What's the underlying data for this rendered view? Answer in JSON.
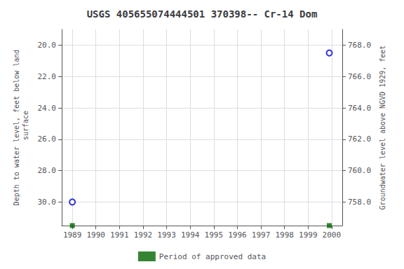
{
  "chart_data": {
    "type": "scatter",
    "title": "USGS 405655074444501 370398-- Cr-14 Dom",
    "ylabel": "Depth to water level, feet below land\n surface",
    "y2label": "Groundwater level above NGVD 1929, feet",
    "xlim": [
      1988.55,
      2000.45
    ],
    "xticks": [
      1989,
      1990,
      1991,
      1992,
      1993,
      1994,
      1995,
      1996,
      1997,
      1998,
      1999,
      2000
    ],
    "ylim": [
      31.5,
      19.0
    ],
    "yticks": [
      {
        "value": 20.0,
        "label": "20.0"
      },
      {
        "value": 22.0,
        "label": "22.0"
      },
      {
        "value": 24.0,
        "label": "24.0"
      },
      {
        "value": 26.0,
        "label": "26.0"
      },
      {
        "value": 28.0,
        "label": "28.0"
      },
      {
        "value": 30.0,
        "label": "30.0"
      }
    ],
    "y2lim": [
      756.5,
      769.0
    ],
    "y2ticks": [
      {
        "value": 758.0,
        "label": "758.0"
      },
      {
        "value": 760.0,
        "label": "760.0"
      },
      {
        "value": 762.0,
        "label": "762.0"
      },
      {
        "value": 764.0,
        "label": "764.0"
      },
      {
        "value": 766.0,
        "label": "766.0"
      },
      {
        "value": 768.0,
        "label": "768.0"
      }
    ],
    "grid": true,
    "legend": "bottom",
    "series": [
      {
        "color": "#0000cc",
        "marker": "open_circle",
        "x": [
          1989.0,
          1999.9
        ],
        "values": [
          30.0,
          20.5
        ]
      },
      {
        "name": "Period of approved data",
        "color": "#006600",
        "marker": "square",
        "x": [
          1989.0,
          1999.9
        ],
        "values": [
          31.5,
          31.5
        ]
      }
    ]
  }
}
